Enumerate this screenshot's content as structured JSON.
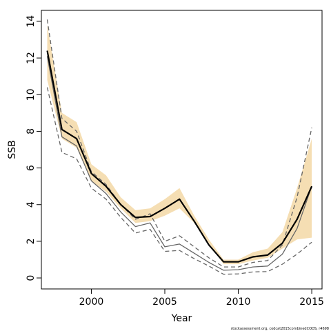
{
  "chart_data": {
    "type": "line",
    "xlabel": "Year",
    "ylabel": "SSB",
    "xlim": [
      1996.6,
      2015.7
    ],
    "ylim": [
      -0.6,
      14.6
    ],
    "x_ticks": [
      2000,
      2005,
      2010,
      2015
    ],
    "y_ticks": [
      0,
      2,
      4,
      6,
      8,
      10,
      12,
      14
    ],
    "x": [
      1997,
      1998,
      1999,
      2000,
      2001,
      2002,
      2003,
      2004,
      2005,
      2006,
      2007,
      2008,
      2009,
      2010,
      2011,
      2012,
      2013,
      2014,
      2015
    ],
    "band": {
      "color": "#f5deb3",
      "lower": [
        10.8,
        7.6,
        7.1,
        5.3,
        4.7,
        3.8,
        3.0,
        3.1,
        3.4,
        3.8,
        3.0,
        1.9,
        0.75,
        0.75,
        0.95,
        1.1,
        1.6,
        2.1,
        2.2
      ],
      "upper": [
        13.8,
        9.0,
        8.5,
        6.2,
        5.6,
        4.4,
        3.7,
        3.8,
        4.3,
        4.9,
        3.4,
        2.1,
        1.0,
        1.0,
        1.4,
        1.6,
        2.5,
        4.9,
        7.6
      ]
    },
    "series": [
      {
        "role": "estimate",
        "color": "#000000",
        "style": "solid",
        "values": [
          12.4,
          8.1,
          7.6,
          5.7,
          5.0,
          4.0,
          3.3,
          3.35,
          3.8,
          4.3,
          3.1,
          1.8,
          0.88,
          0.88,
          1.15,
          1.25,
          1.9,
          3.2,
          5.0
        ]
      },
      {
        "role": "alternative-estimate",
        "color": "#666666",
        "style": "solid",
        "values": [
          12.1,
          7.7,
          7.2,
          5.3,
          4.6,
          3.6,
          2.8,
          3.0,
          1.7,
          1.85,
          1.35,
          0.85,
          0.42,
          0.45,
          0.6,
          0.65,
          1.3,
          2.7,
          5.0
        ]
      },
      {
        "role": "alternative-upper",
        "color": "#666666",
        "style": "dashed",
        "values": [
          14.1,
          8.7,
          8.0,
          5.8,
          5.1,
          4.0,
          3.2,
          3.5,
          2.0,
          2.3,
          1.7,
          1.1,
          0.6,
          0.6,
          0.85,
          0.95,
          1.8,
          4.4,
          8.2
        ]
      },
      {
        "role": "alternative-lower",
        "color": "#666666",
        "style": "dashed",
        "values": [
          10.4,
          6.85,
          6.5,
          4.9,
          4.3,
          3.3,
          2.45,
          2.65,
          1.45,
          1.5,
          1.05,
          0.65,
          0.2,
          0.22,
          0.33,
          0.35,
          0.75,
          1.3,
          1.95
        ]
      }
    ]
  },
  "footer": {
    "credit": "stockassessment.org,  codcat2015combinedCODS,  r4698"
  }
}
